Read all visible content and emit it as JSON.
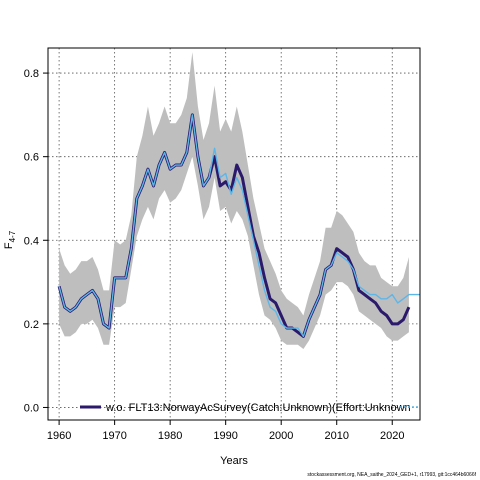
{
  "chart_data": {
    "type": "line",
    "ylabel_main": "F",
    "ylabel_sub": "4-7",
    "xlabel": "Years",
    "xlim": [
      1958,
      2025
    ],
    "ylim": [
      -0.03,
      0.86
    ],
    "x_ticks": [
      1960,
      1970,
      1980,
      1990,
      2000,
      2010,
      2020
    ],
    "y_ticks": [
      0.0,
      0.2,
      0.4,
      0.6,
      0.8
    ],
    "y_tick_labels": [
      "0.0",
      "0.2",
      "0.4",
      "0.6",
      "0.8"
    ],
    "grid": true,
    "legend_placement": "bottom",
    "legend_label": "w.o. FLT13:NorwayAcSurvey(Catch:Unknown)(Effort:Unknown",
    "colors": {
      "band": "#bebebe",
      "main_line": "#2b1a6b",
      "alt_line": "#5db6e8",
      "grid": "#555555"
    },
    "band": {
      "x": [
        1960,
        1961,
        1962,
        1963,
        1964,
        1965,
        1966,
        1967,
        1968,
        1969,
        1970,
        1971,
        1972,
        1973,
        1974,
        1975,
        1976,
        1977,
        1978,
        1979,
        1980,
        1981,
        1982,
        1983,
        1984,
        1985,
        1986,
        1987,
        1988,
        1989,
        1990,
        1991,
        1992,
        1993,
        1994,
        1995,
        1996,
        1997,
        1998,
        1999,
        2000,
        2001,
        2002,
        2003,
        2004,
        2005,
        2006,
        2007,
        2008,
        2009,
        2010,
        2011,
        2012,
        2013,
        2014,
        2015,
        2016,
        2017,
        2018,
        2019,
        2020,
        2021,
        2022,
        2023
      ],
      "upper": [
        0.38,
        0.34,
        0.32,
        0.33,
        0.35,
        0.35,
        0.36,
        0.33,
        0.28,
        0.28,
        0.4,
        0.39,
        0.4,
        0.46,
        0.6,
        0.65,
        0.72,
        0.65,
        0.68,
        0.72,
        0.68,
        0.68,
        0.7,
        0.74,
        0.85,
        0.72,
        0.64,
        0.68,
        0.77,
        0.66,
        0.69,
        0.66,
        0.72,
        0.66,
        0.58,
        0.5,
        0.44,
        0.38,
        0.35,
        0.32,
        0.28,
        0.26,
        0.25,
        0.24,
        0.22,
        0.27,
        0.31,
        0.35,
        0.43,
        0.43,
        0.47,
        0.46,
        0.44,
        0.42,
        0.37,
        0.35,
        0.34,
        0.34,
        0.31,
        0.3,
        0.29,
        0.29,
        0.31,
        0.36
      ],
      "lower": [
        0.2,
        0.17,
        0.17,
        0.18,
        0.2,
        0.2,
        0.21,
        0.19,
        0.15,
        0.15,
        0.24,
        0.24,
        0.25,
        0.33,
        0.41,
        0.45,
        0.48,
        0.45,
        0.5,
        0.52,
        0.49,
        0.5,
        0.52,
        0.56,
        0.6,
        0.53,
        0.45,
        0.48,
        0.55,
        0.47,
        0.48,
        0.44,
        0.47,
        0.45,
        0.41,
        0.34,
        0.27,
        0.22,
        0.21,
        0.19,
        0.16,
        0.15,
        0.15,
        0.15,
        0.14,
        0.16,
        0.19,
        0.22,
        0.27,
        0.28,
        0.3,
        0.3,
        0.29,
        0.27,
        0.23,
        0.22,
        0.21,
        0.2,
        0.19,
        0.17,
        0.16,
        0.16,
        0.17,
        0.18
      ]
    },
    "series": [
      {
        "name": "w.o. FLT13:NorwayAcSurvey(Catch:Unknown)(Effort:Unknown",
        "x": [
          1960,
          1961,
          1962,
          1963,
          1964,
          1965,
          1966,
          1967,
          1968,
          1969,
          1970,
          1971,
          1972,
          1973,
          1974,
          1975,
          1976,
          1977,
          1978,
          1979,
          1980,
          1981,
          1982,
          1983,
          1984,
          1985,
          1986,
          1987,
          1988,
          1989,
          1990,
          1991,
          1992,
          1993,
          1994,
          1995,
          1996,
          1997,
          1998,
          1999,
          2000,
          2001,
          2002,
          2003,
          2004,
          2005,
          2006,
          2007,
          2008,
          2009,
          2010,
          2011,
          2012,
          2013,
          2014,
          2015,
          2016,
          2017,
          2018,
          2019,
          2020,
          2021,
          2022,
          2023
        ],
        "y": [
          0.29,
          0.24,
          0.23,
          0.24,
          0.26,
          0.27,
          0.28,
          0.26,
          0.2,
          0.19,
          0.31,
          0.31,
          0.31,
          0.38,
          0.5,
          0.53,
          0.57,
          0.53,
          0.58,
          0.61,
          0.57,
          0.58,
          0.58,
          0.61,
          0.7,
          0.6,
          0.53,
          0.55,
          0.6,
          0.53,
          0.54,
          0.52,
          0.58,
          0.55,
          0.48,
          0.41,
          0.37,
          0.31,
          0.26,
          0.25,
          0.22,
          0.19,
          0.19,
          0.18,
          0.17,
          0.21,
          0.24,
          0.27,
          0.33,
          0.34,
          0.38,
          0.37,
          0.36,
          0.33,
          0.28,
          0.27,
          0.26,
          0.25,
          0.23,
          0.22,
          0.2,
          0.2,
          0.21,
          0.24
        ]
      },
      {
        "name": "",
        "x": [
          1960,
          1961,
          1962,
          1963,
          1964,
          1965,
          1966,
          1967,
          1968,
          1969,
          1970,
          1971,
          1972,
          1973,
          1974,
          1975,
          1976,
          1977,
          1978,
          1979,
          1980,
          1981,
          1982,
          1983,
          1984,
          1985,
          1986,
          1987,
          1988,
          1989,
          1990,
          1991,
          1992,
          1993,
          1994,
          1995,
          1996,
          1997,
          1998,
          1999,
          2000,
          2001,
          2002,
          2003,
          2004,
          2005,
          2006,
          2007,
          2008,
          2009,
          2010,
          2011,
          2012,
          2013,
          2014,
          2015,
          2016,
          2017,
          2018,
          2019,
          2020,
          2021,
          2022,
          2023,
          2024,
          2025
        ],
        "y": [
          0.29,
          0.24,
          0.23,
          0.24,
          0.26,
          0.27,
          0.28,
          0.26,
          0.2,
          0.19,
          0.31,
          0.31,
          0.31,
          0.38,
          0.5,
          0.53,
          0.57,
          0.53,
          0.58,
          0.61,
          0.57,
          0.58,
          0.58,
          0.61,
          0.7,
          0.6,
          0.53,
          0.55,
          0.62,
          0.55,
          0.56,
          0.51,
          0.55,
          0.52,
          0.46,
          0.4,
          0.34,
          0.28,
          0.24,
          0.23,
          0.2,
          0.19,
          0.19,
          0.19,
          0.17,
          0.21,
          0.24,
          0.27,
          0.33,
          0.34,
          0.37,
          0.36,
          0.35,
          0.33,
          0.29,
          0.28,
          0.27,
          0.27,
          0.26,
          0.26,
          0.27,
          0.25,
          0.26,
          0.27,
          0.27,
          0.27
        ]
      }
    ]
  },
  "footer_text": "stockassessment.org, NEA_saithe_2024_GED+1, r17993, git:1cc464b6066f"
}
